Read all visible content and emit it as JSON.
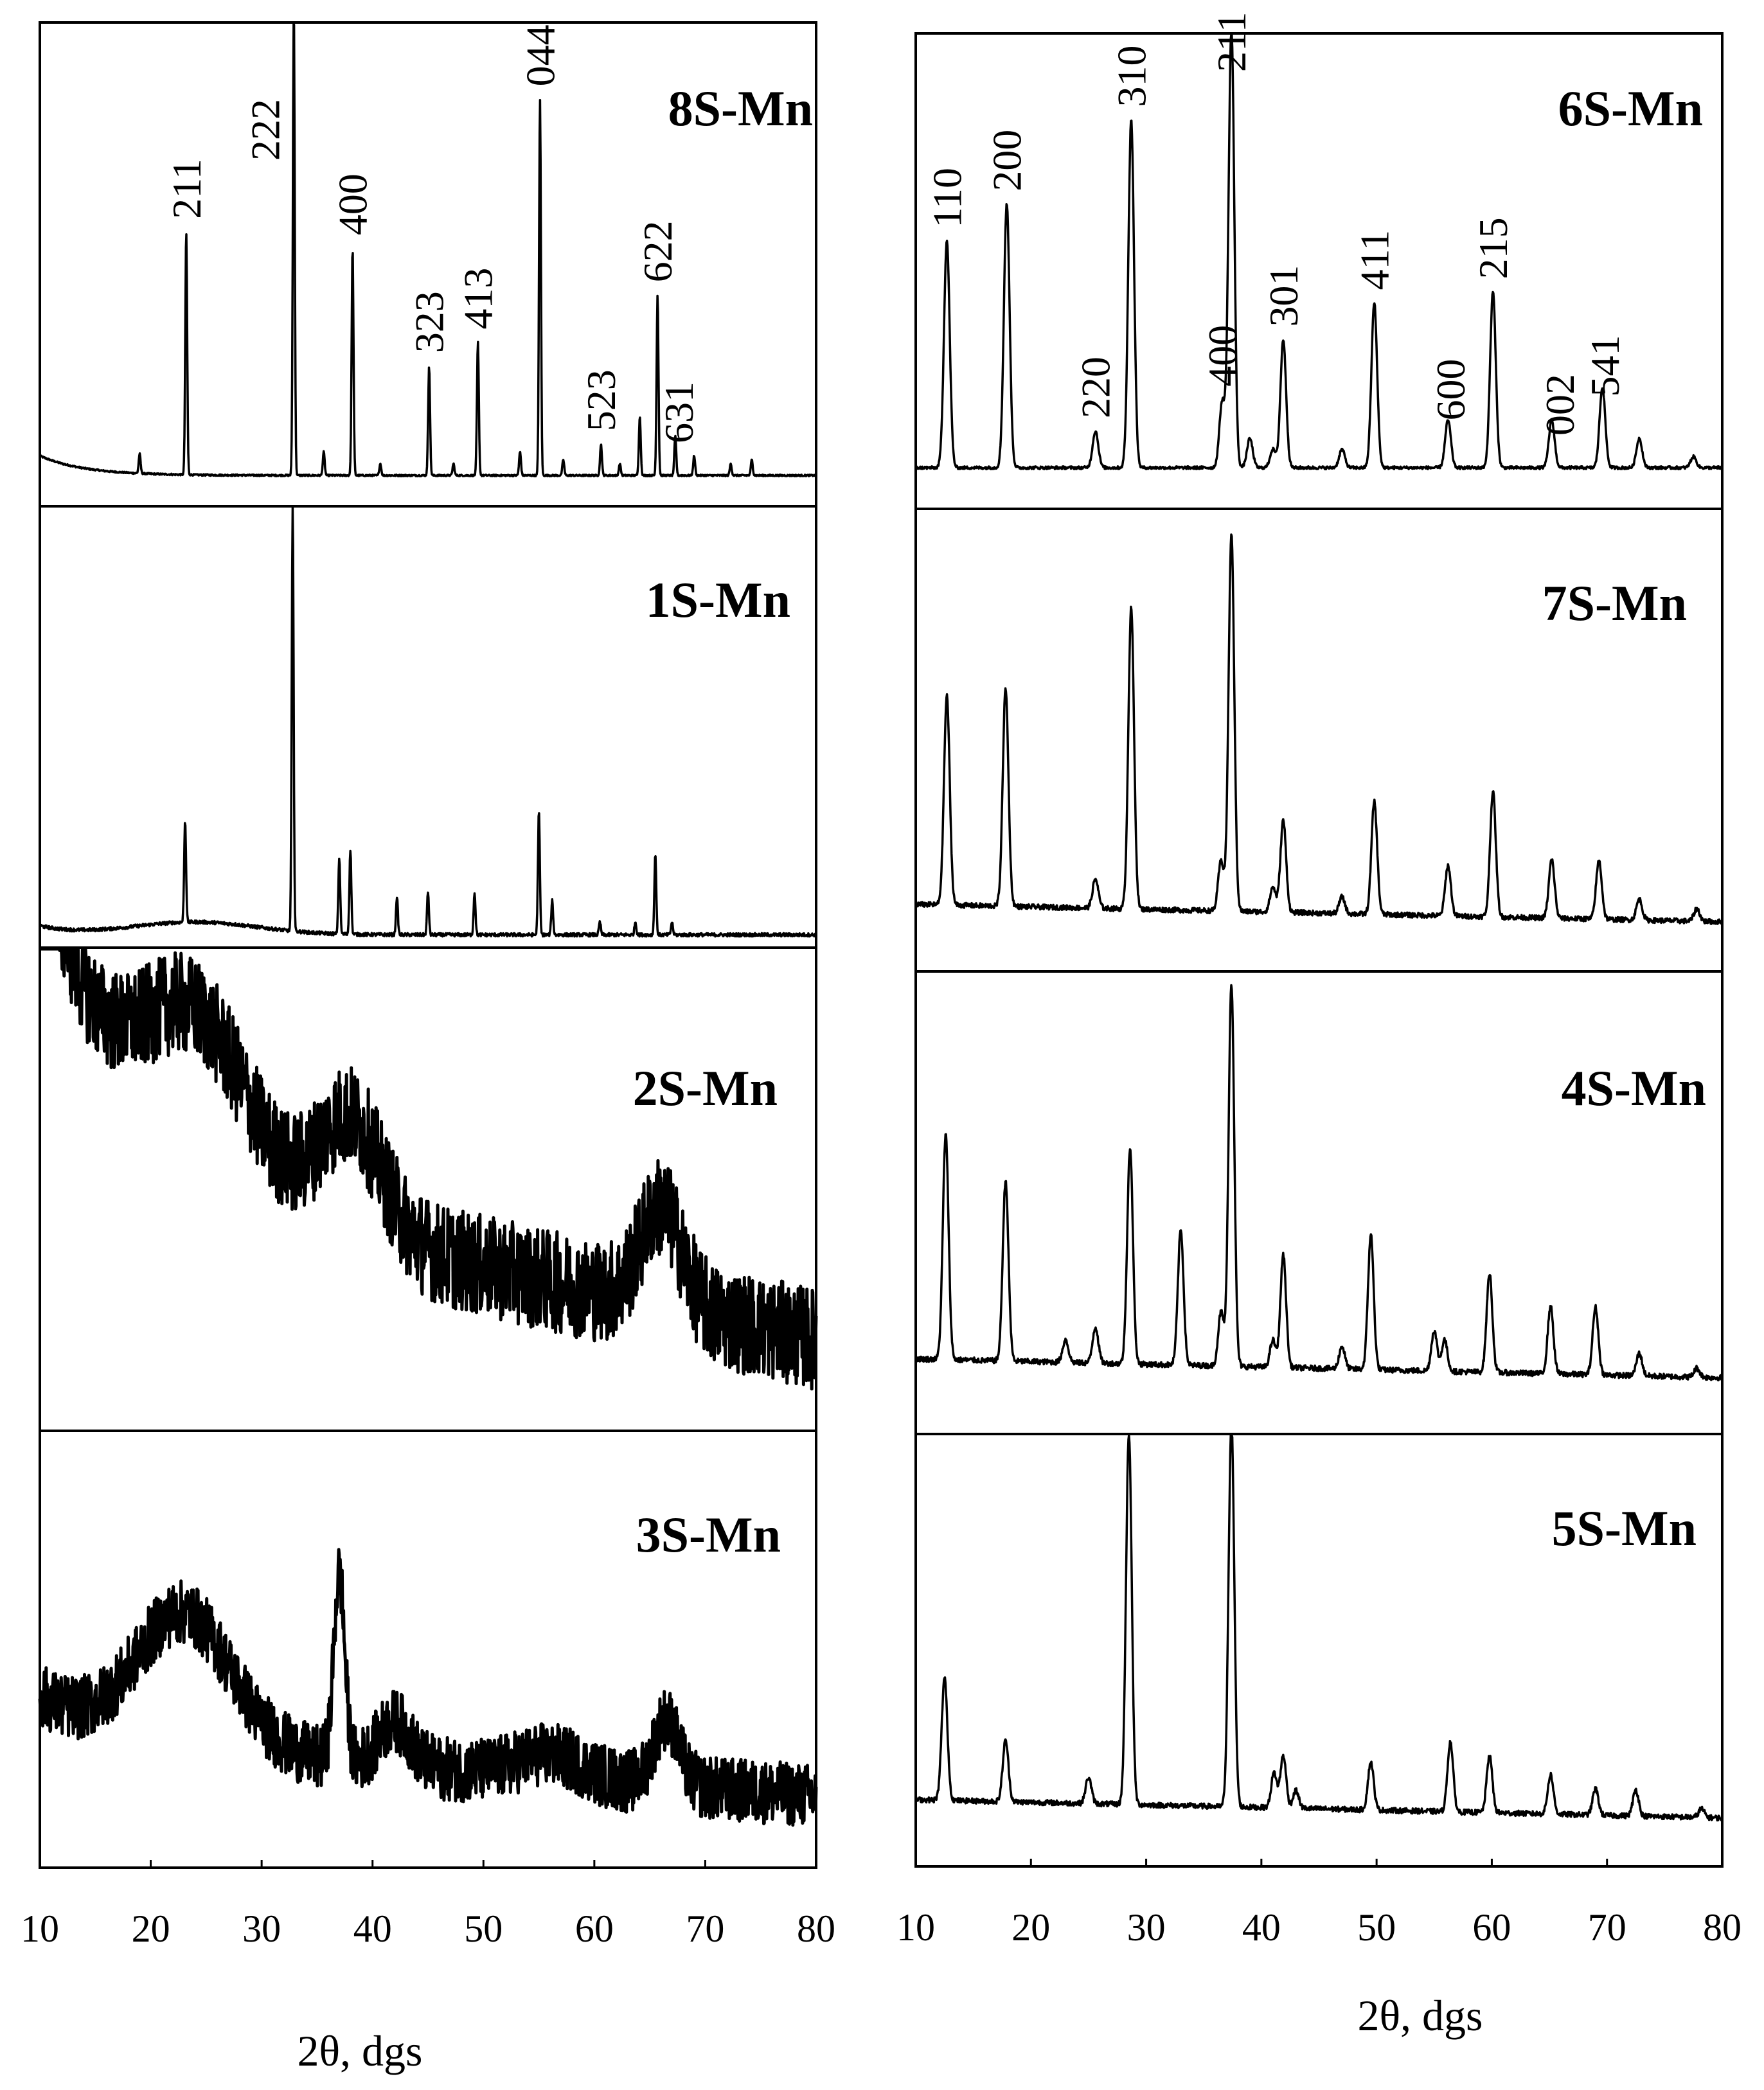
{
  "chart_data": [
    {
      "type": "line",
      "title": "8S-Mn",
      "xlim": [
        10,
        80
      ],
      "x_ticks": [],
      "xlabel": "",
      "peaks": [
        {
          "x": 19,
          "y": 0.05
        },
        {
          "x": 23.2,
          "y": 0.62
        },
        {
          "x": 32.9,
          "y": 1.2
        },
        {
          "x": 35.6,
          "y": 0.06
        },
        {
          "x": 38.2,
          "y": 0.58
        },
        {
          "x": 40.7,
          "y": 0.03
        },
        {
          "x": 45.1,
          "y": 0.28
        },
        {
          "x": 47.3,
          "y": 0.03
        },
        {
          "x": 49.5,
          "y": 0.34
        },
        {
          "x": 53.3,
          "y": 0.06
        },
        {
          "x": 55.1,
          "y": 0.96
        },
        {
          "x": 57.2,
          "y": 0.04
        },
        {
          "x": 60.6,
          "y": 0.08
        },
        {
          "x": 62.3,
          "y": 0.03
        },
        {
          "x": 64.1,
          "y": 0.15
        },
        {
          "x": 65.7,
          "y": 0.46
        },
        {
          "x": 67.3,
          "y": 0.1
        },
        {
          "x": 69,
          "y": 0.05
        },
        {
          "x": 72.3,
          "y": 0.03
        },
        {
          "x": 74.2,
          "y": 0.04
        }
      ],
      "hkl": [
        {
          "label": "211",
          "x": 23.2
        },
        {
          "label": "222",
          "x": 30.3
        },
        {
          "label": "400",
          "x": 38.2
        },
        {
          "label": "323",
          "x": 45.1
        },
        {
          "label": "413",
          "x": 49.5
        },
        {
          "label": "044",
          "x": 55.1
        },
        {
          "label": "523",
          "x": 60.6
        },
        {
          "label": "622",
          "x": 65.7
        },
        {
          "label": "631",
          "x": 67.6
        }
      ]
    },
    {
      "type": "line",
      "title": "1S-Mn",
      "xlim": [
        10,
        80
      ],
      "x_ticks": [],
      "xlabel": "",
      "peaks": [
        {
          "x": 23.1,
          "y": 0.24
        },
        {
          "x": 32.8,
          "y": 1.0
        },
        {
          "x": 37,
          "y": 0.18
        },
        {
          "x": 38,
          "y": 0.2
        },
        {
          "x": 42.2,
          "y": 0.09
        },
        {
          "x": 45,
          "y": 0.1
        },
        {
          "x": 49.2,
          "y": 0.1
        },
        {
          "x": 55,
          "y": 0.29
        },
        {
          "x": 56.2,
          "y": 0.08
        },
        {
          "x": 60.5,
          "y": 0.03
        },
        {
          "x": 63.7,
          "y": 0.03
        },
        {
          "x": 65.5,
          "y": 0.19
        },
        {
          "x": 67,
          "y": 0.03
        }
      ]
    },
    {
      "type": "line",
      "title": "2S-Mn",
      "xlim": [
        10,
        80
      ],
      "x_ticks": [],
      "xlabel": "",
      "features": [
        {
          "x": 24,
          "y": 0.3
        },
        {
          "x": 37,
          "y": 0.2
        },
        {
          "x": 66,
          "y": 0.2
        }
      ]
    },
    {
      "type": "line",
      "title": "3S-Mn",
      "xlim": [
        10,
        80
      ],
      "x_ticks": [
        10,
        20,
        30,
        40,
        50,
        60,
        70,
        80
      ],
      "xlabel": "2θ, dgs",
      "features": [
        {
          "x": 23,
          "y": 0.3
        },
        {
          "x": 37,
          "y": 0.55
        },
        {
          "x": 42,
          "y": 0.1
        },
        {
          "x": 56,
          "y": 0.05
        },
        {
          "x": 66.5,
          "y": 0.2
        }
      ]
    },
    {
      "type": "line",
      "title": "6S-Mn",
      "xlim": [
        10,
        80
      ],
      "x_ticks": [],
      "xlabel": "",
      "peaks": [
        {
          "x": 12.7,
          "y": 0.62
        },
        {
          "x": 17.9,
          "y": 0.72
        },
        {
          "x": 25.6,
          "y": 0.1
        },
        {
          "x": 28.7,
          "y": 0.95
        },
        {
          "x": 36.6,
          "y": 0.18
        },
        {
          "x": 37.4,
          "y": 1.2
        },
        {
          "x": 39,
          "y": 0.08
        },
        {
          "x": 41,
          "y": 0.05
        },
        {
          "x": 41.9,
          "y": 0.35
        },
        {
          "x": 47,
          "y": 0.05
        },
        {
          "x": 49.8,
          "y": 0.45
        },
        {
          "x": 56.2,
          "y": 0.13
        },
        {
          "x": 60.1,
          "y": 0.48
        },
        {
          "x": 65.2,
          "y": 0.13
        },
        {
          "x": 69.6,
          "y": 0.22
        },
        {
          "x": 72.8,
          "y": 0.08
        },
        {
          "x": 77.5,
          "y": 0.03
        }
      ],
      "hkl": [
        {
          "label": "110",
          "x": 12.7
        },
        {
          "label": "200",
          "x": 17.9
        },
        {
          "label": "220",
          "x": 25.6
        },
        {
          "label": "310",
          "x": 28.7
        },
        {
          "label": "400",
          "x": 36.6
        },
        {
          "label": "211",
          "x": 37.4
        },
        {
          "label": "301",
          "x": 41.9
        },
        {
          "label": "411",
          "x": 49.8
        },
        {
          "label": "600",
          "x": 56.4
        },
        {
          "label": "215",
          "x": 60.1
        },
        {
          "label": "002",
          "x": 65.9
        },
        {
          "label": "541",
          "x": 69.8
        }
      ]
    },
    {
      "type": "line",
      "title": "7S-Mn",
      "xlim": [
        10,
        80
      ],
      "x_ticks": [],
      "xlabel": "",
      "peaks": [
        {
          "x": 12.7,
          "y": 0.5
        },
        {
          "x": 17.8,
          "y": 0.52
        },
        {
          "x": 25.6,
          "y": 0.07
        },
        {
          "x": 28.7,
          "y": 0.72
        },
        {
          "x": 36.5,
          "y": 0.12
        },
        {
          "x": 37.4,
          "y": 0.9
        },
        {
          "x": 41,
          "y": 0.06
        },
        {
          "x": 41.9,
          "y": 0.22
        },
        {
          "x": 47,
          "y": 0.04
        },
        {
          "x": 49.8,
          "y": 0.27
        },
        {
          "x": 56.2,
          "y": 0.12
        },
        {
          "x": 60.1,
          "y": 0.3
        },
        {
          "x": 65.2,
          "y": 0.14
        },
        {
          "x": 69.3,
          "y": 0.14
        },
        {
          "x": 72.8,
          "y": 0.05
        },
        {
          "x": 77.8,
          "y": 0.03
        }
      ]
    },
    {
      "type": "line",
      "title": "4S-Mn",
      "xlim": [
        10,
        80
      ],
      "x_ticks": [],
      "xlabel": "",
      "peaks": [
        {
          "x": 12.6,
          "y": 0.5
        },
        {
          "x": 17.8,
          "y": 0.4
        },
        {
          "x": 23,
          "y": 0.05
        },
        {
          "x": 25.6,
          "y": 0.08
        },
        {
          "x": 28.6,
          "y": 0.48
        },
        {
          "x": 33,
          "y": 0.3
        },
        {
          "x": 36.5,
          "y": 0.12
        },
        {
          "x": 37.4,
          "y": 0.85
        },
        {
          "x": 41,
          "y": 0.06
        },
        {
          "x": 41.9,
          "y": 0.25
        },
        {
          "x": 47,
          "y": 0.05
        },
        {
          "x": 49.5,
          "y": 0.3
        },
        {
          "x": 55,
          "y": 0.09
        },
        {
          "x": 55.9,
          "y": 0.07
        },
        {
          "x": 59.8,
          "y": 0.22
        },
        {
          "x": 65.1,
          "y": 0.15
        },
        {
          "x": 69,
          "y": 0.15
        },
        {
          "x": 72.8,
          "y": 0.05
        },
        {
          "x": 77.8,
          "y": 0.02
        }
      ]
    },
    {
      "type": "line",
      "title": "5S-Mn",
      "xlim": [
        10,
        80
      ],
      "x_ticks": [
        10,
        20,
        30,
        40,
        50,
        60,
        70,
        80
      ],
      "xlabel": "2θ, dgs",
      "peaks": [
        {
          "x": 12.5,
          "y": 0.28
        },
        {
          "x": 17.8,
          "y": 0.14
        },
        {
          "x": 25,
          "y": 0.06
        },
        {
          "x": 28.5,
          "y": 0.85
        },
        {
          "x": 37.4,
          "y": 0.88
        },
        {
          "x": 41.1,
          "y": 0.08
        },
        {
          "x": 41.9,
          "y": 0.12
        },
        {
          "x": 43,
          "y": 0.04
        },
        {
          "x": 49.5,
          "y": 0.11
        },
        {
          "x": 56.4,
          "y": 0.16
        },
        {
          "x": 59.8,
          "y": 0.13
        },
        {
          "x": 65.1,
          "y": 0.09
        },
        {
          "x": 69,
          "y": 0.06
        },
        {
          "x": 72.5,
          "y": 0.06
        },
        {
          "x": 78.2,
          "y": 0.02
        }
      ]
    }
  ]
}
